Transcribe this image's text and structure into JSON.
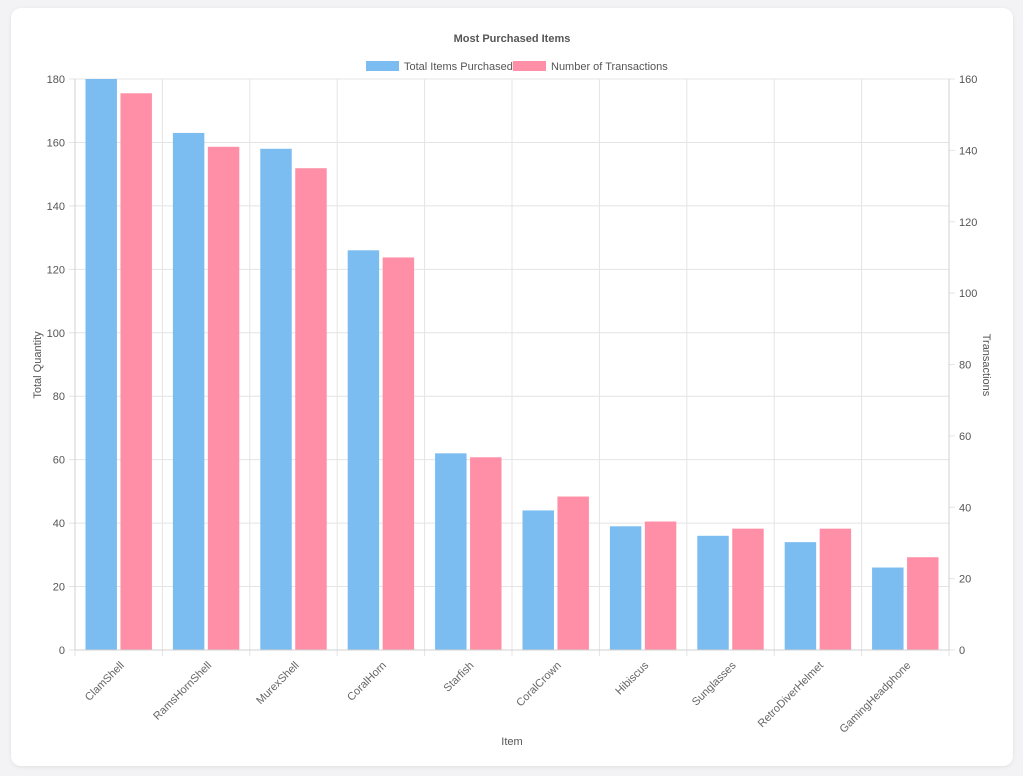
{
  "chart_data": {
    "type": "bar",
    "title": "Most Purchased Items",
    "xlabel": "Item",
    "ylabel": "Total Quantity",
    "y2label": "Transactions",
    "categories": [
      "ClamShell",
      "RamsHornShell",
      "MurexShell",
      "CoralHorn",
      "Starfish",
      "CoralCrown",
      "Hibiscus",
      "Sunglasses",
      "RetroDiverHelmet",
      "GamingHeadphone"
    ],
    "series": [
      {
        "name": "Total Items Purchased",
        "axis": "left",
        "color": "#7bbdf0",
        "values": [
          180,
          163,
          158,
          126,
          62,
          44,
          39,
          36,
          34,
          26
        ]
      },
      {
        "name": "Number of Transactions",
        "axis": "right",
        "color": "#ff8fa6",
        "values": [
          156,
          141,
          135,
          110,
          54,
          43,
          36,
          34,
          34,
          26
        ]
      }
    ],
    "ylim": [
      0,
      180
    ],
    "y2lim": [
      0,
      160
    ],
    "yticks": [
      "0",
      "20",
      "40",
      "60",
      "80",
      "100",
      "120",
      "140",
      "160",
      "180"
    ],
    "y2ticks": [
      "0",
      "20",
      "40",
      "60",
      "80",
      "100",
      "120",
      "140",
      "160"
    ],
    "legend_position": "top-center",
    "grid": true
  }
}
